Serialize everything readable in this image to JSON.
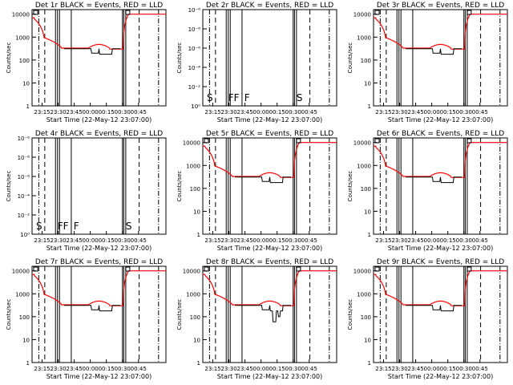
{
  "chart_data": [
    {
      "id": "1r",
      "type": "line",
      "title": "Det 1r BLACK = Events, RED = LLD",
      "ylabel": "Counts/sec",
      "xlabel": "Start Time (22-May-12 23:07:00)",
      "scale": "log",
      "yticks": [
        "1",
        "10",
        "100",
        "1000",
        "10000"
      ],
      "xticks": [
        "23:15",
        "23:30",
        "23:45",
        "00:00",
        "00:15",
        "00:30",
        "00:45"
      ],
      "markers": [],
      "series": [
        {
          "name": "Events",
          "color": "#000000"
        },
        {
          "name": "LLD",
          "color": "#ff0000"
        }
      ],
      "profile": "normal"
    },
    {
      "id": "2r",
      "type": "line",
      "title": "Det 2r BLACK = Events, RED = LLD",
      "ylabel": "Counts/sec",
      "xlabel": "Start Time (22-May-12 23:07:00)",
      "scale": "tiny",
      "yticks": [
        "10⁰",
        "10⁻²",
        "10⁻⁴",
        "10⁻⁶",
        "10⁻⁸",
        "10⁻⁶"
      ],
      "xticks": [
        "23:15",
        "23:30",
        "23:45",
        "00:00",
        "00:15",
        "00:30",
        "00:45"
      ],
      "markers": [
        "S",
        "FF",
        "F",
        "S"
      ],
      "series": [],
      "profile": "empty"
    },
    {
      "id": "3r",
      "type": "line",
      "title": "Det 3r BLACK = Events, RED = LLD",
      "ylabel": "Counts/sec",
      "xlabel": "Start Time (22-May-12 23:07:00)",
      "scale": "log",
      "yticks": [
        "1",
        "10",
        "100",
        "1000",
        "10000"
      ],
      "xticks": [
        "23:15",
        "23:30",
        "23:45",
        "00:00",
        "00:15",
        "00:30",
        "00:45"
      ],
      "markers": [],
      "series": [
        {
          "name": "Events",
          "color": "#000000"
        },
        {
          "name": "LLD",
          "color": "#ff0000"
        }
      ],
      "profile": "normal"
    },
    {
      "id": "4r",
      "type": "line",
      "title": "Det 4r BLACK = Events, RED = LLD",
      "ylabel": "Counts/sec",
      "xlabel": "Start Time (22-May-12 23:07:00)",
      "scale": "tiny",
      "yticks": [
        "10⁰",
        "10⁻²",
        "10⁻⁴",
        "10⁻⁶",
        "10⁻⁸",
        "10⁻⁶"
      ],
      "xticks": [
        "23:15",
        "23:30",
        "23:45",
        "00:00",
        "00:15",
        "00:30",
        "00:45"
      ],
      "markers": [
        "S",
        "FF",
        "F",
        "S"
      ],
      "series": [],
      "profile": "empty"
    },
    {
      "id": "5r",
      "type": "line",
      "title": "Det 5r BLACK = Events, RED = LLD",
      "ylabel": "Counts/sec",
      "xlabel": "Start Time (22-May-12 23:07:00)",
      "scale": "log",
      "yticks": [
        "1",
        "10",
        "100",
        "1000",
        "10000"
      ],
      "xticks": [
        "23:15",
        "23:30",
        "23:45",
        "00:00",
        "00:15",
        "00:30",
        "00:45"
      ],
      "markers": [],
      "series": [
        {
          "name": "Events",
          "color": "#000000"
        },
        {
          "name": "LLD",
          "color": "#ff0000"
        }
      ],
      "profile": "normal"
    },
    {
      "id": "6r",
      "type": "line",
      "title": "Det 6r BLACK = Events, RED = LLD",
      "ylabel": "Counts/sec",
      "xlabel": "Start Time (22-May-12 23:07:00)",
      "scale": "log",
      "yticks": [
        "1",
        "10",
        "100",
        "1000",
        "10000"
      ],
      "xticks": [
        "23:15",
        "23:30",
        "23:45",
        "00:00",
        "00:15",
        "00:30",
        "00:45"
      ],
      "markers": [],
      "series": [
        {
          "name": "Events",
          "color": "#000000"
        },
        {
          "name": "LLD",
          "color": "#ff0000"
        }
      ],
      "profile": "normal"
    },
    {
      "id": "7r",
      "type": "line",
      "title": "Det 7r BLACK = Events, RED = LLD",
      "ylabel": "Counts/sec",
      "xlabel": "Start Time (22-May-12 23:07:00)",
      "scale": "log",
      "yticks": [
        "1",
        "10",
        "100",
        "1000",
        "10000"
      ],
      "xticks": [
        "23:15",
        "23:30",
        "23:45",
        "00:00",
        "00:15",
        "00:30",
        "00:45"
      ],
      "markers": [],
      "series": [
        {
          "name": "Events",
          "color": "#000000"
        },
        {
          "name": "LLD",
          "color": "#ff0000"
        }
      ],
      "profile": "normal"
    },
    {
      "id": "8r",
      "type": "line",
      "title": "Det 8r BLACK = Events, RED = LLD",
      "ylabel": "Counts/sec",
      "xlabel": "Start Time (22-May-12 23:07:00)",
      "scale": "log",
      "yticks": [
        "1",
        "10",
        "100",
        "1000",
        "10000"
      ],
      "xticks": [
        "23:15",
        "23:30",
        "23:45",
        "00:00",
        "00:15",
        "00:30",
        "00:45"
      ],
      "markers": [],
      "series": [
        {
          "name": "Events",
          "color": "#000000"
        },
        {
          "name": "LLD",
          "color": "#ff0000"
        }
      ],
      "profile": "noisy"
    },
    {
      "id": "9r",
      "type": "line",
      "title": "Det 9r BLACK = Events, RED = LLD",
      "ylabel": "Counts/sec",
      "xlabel": "Start Time (22-May-12 23:07:00)",
      "scale": "log",
      "yticks": [
        "1",
        "10",
        "100",
        "1000",
        "10000"
      ],
      "xticks": [
        "23:15",
        "23:30",
        "23:45",
        "00:00",
        "00:15",
        "00:30",
        "00:45"
      ],
      "markers": [],
      "series": [
        {
          "name": "Events",
          "color": "#000000"
        },
        {
          "name": "LLD",
          "color": "#ff0000"
        }
      ],
      "profile": "normal"
    }
  ]
}
